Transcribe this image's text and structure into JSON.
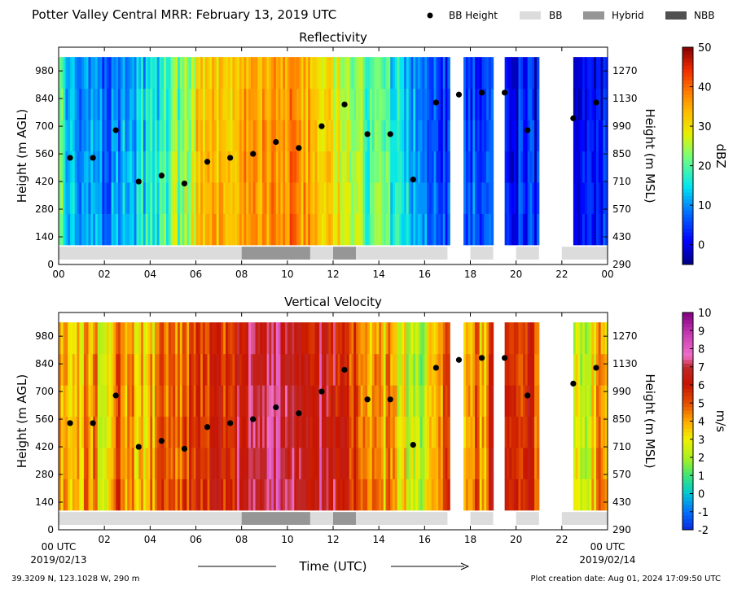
{
  "figure": {
    "title": "Potter Valley Central MRR:  February 13, 2019 UTC",
    "footer_left": "39.3209 N, 123.1028 W, 290 m",
    "footer_right": "Plot creation date: Aug 01, 2024 17:09:50 UTC",
    "xlabel": "Time (UTC)",
    "start_label": "00 UTC",
    "start_date": "2019/02/13",
    "end_label": "00 UTC",
    "end_date": "2019/02/14"
  },
  "legend": {
    "bb_height": "BB Height",
    "bb": "BB",
    "hybrid": "Hybrid",
    "nbb": "NBB"
  },
  "colors": {
    "bb": "#dcdcdc",
    "hybrid": "#969696",
    "nbb": "#505050",
    "marker": "#000000"
  },
  "chart_data": [
    {
      "type": "heatmap",
      "title": "Reflectivity",
      "ylabel": "Height (m AGL)",
      "y2label": "Height (m MSL)",
      "colorbar_label": "dBZ",
      "clim": [
        -5,
        50
      ],
      "colorbar_ticks": [
        "0",
        "10",
        "20",
        "30",
        "40",
        "50"
      ],
      "x_ticks": [
        "00",
        "02",
        "04",
        "06",
        "08",
        "10",
        "12",
        "14",
        "16",
        "18",
        "20",
        "22",
        "00"
      ],
      "y_ticks": [
        "0",
        "140",
        "280",
        "420",
        "560",
        "700",
        "840",
        "980"
      ],
      "y2_ticks": [
        "290",
        "430",
        "570",
        "710",
        "850",
        "990",
        "1130",
        "1270"
      ],
      "xlim_hours": [
        0,
        24
      ],
      "ylim_m": [
        0,
        1100
      ],
      "data_height_range_m": [
        100,
        1050
      ],
      "value_profile_hours": [
        0,
        0.5,
        1,
        1.5,
        2,
        2.5,
        3,
        3.5,
        4,
        4.5,
        5,
        5.5,
        6,
        6.5,
        7,
        7.5,
        8,
        8.5,
        9,
        9.5,
        10,
        10.5,
        11,
        11.5,
        12,
        12.5,
        13,
        13.5,
        14,
        14.5,
        15,
        15.5,
        16,
        16.5,
        17,
        17.5,
        18,
        18.5,
        19,
        19.5,
        20,
        20.5,
        21,
        21.5,
        22,
        22.5,
        23,
        23.5,
        24
      ],
      "value_profile": [
        22,
        14,
        10,
        12,
        8,
        10,
        16,
        14,
        18,
        18,
        22,
        24,
        32,
        34,
        35,
        35,
        36,
        37,
        38,
        38,
        38,
        37,
        36,
        34,
        30,
        26,
        24,
        22,
        20,
        18,
        14,
        12,
        10,
        8,
        6,
        5,
        8,
        4,
        6,
        3,
        2,
        6,
        3,
        null,
        null,
        2,
        4,
        2,
        3
      ],
      "no_data_hours": [
        [
          17.1,
          17.7
        ],
        [
          19.0,
          19.5
        ],
        [
          21.1,
          22.2
        ]
      ]
    },
    {
      "type": "heatmap",
      "title": "Vertical Velocity",
      "ylabel": "Height (m AGL)",
      "y2label": "Height (m MSL)",
      "colorbar_label": "m/s",
      "clim": [
        -2,
        10
      ],
      "colorbar_ticks": [
        "-2",
        "-1",
        "0",
        "1",
        "2",
        "3",
        "4",
        "5",
        "6",
        "7",
        "8",
        "9",
        "10"
      ],
      "x_ticks": [
        "",
        "02",
        "04",
        "06",
        "08",
        "10",
        "12",
        "14",
        "16",
        "18",
        "20",
        "22",
        ""
      ],
      "y_ticks": [
        "0",
        "140",
        "280",
        "420",
        "560",
        "700",
        "840",
        "980"
      ],
      "y2_ticks": [
        "290",
        "430",
        "570",
        "710",
        "850",
        "990",
        "1130",
        "1270"
      ],
      "xlim_hours": [
        0,
        24
      ],
      "ylim_m": [
        0,
        1100
      ],
      "data_height_range_m": [
        100,
        1050
      ],
      "value_profile_hours": [
        0,
        0.5,
        1,
        1.5,
        2,
        2.5,
        3,
        3.5,
        4,
        4.5,
        5,
        5.5,
        6,
        6.5,
        7,
        7.5,
        8,
        8.5,
        9,
        9.5,
        10,
        10.5,
        11,
        11.5,
        12,
        12.5,
        13,
        13.5,
        14,
        14.5,
        15,
        15.5,
        16,
        16.5,
        17,
        17.5,
        18,
        18.5,
        19,
        19.5,
        20,
        20.5,
        21,
        21.5,
        22,
        22.5,
        23,
        23.5,
        24
      ],
      "value_profile": [
        3.5,
        4,
        4,
        4.5,
        3,
        5,
        4,
        4,
        4,
        4.5,
        5,
        5,
        6,
        6,
        6,
        6,
        7,
        7.5,
        7.5,
        7.5,
        7.5,
        7.5,
        7,
        7,
        6.5,
        6,
        5.5,
        5,
        4,
        4,
        3,
        3,
        2.5,
        4,
        6,
        2,
        5,
        4,
        6,
        6,
        6,
        6,
        5.5,
        null,
        null,
        3,
        3,
        4,
        4
      ],
      "no_data_hours": [
        [
          17.1,
          17.7
        ],
        [
          19.0,
          19.5
        ],
        [
          21.1,
          22.2
        ]
      ]
    }
  ],
  "bb_height_points": {
    "hours": [
      0.5,
      1.5,
      2.5,
      3.5,
      4.5,
      5.5,
      6.5,
      7.5,
      8.5,
      9.5,
      10.5,
      11.5,
      12.5,
      13.5,
      14.5,
      15.5,
      16.5,
      17.5,
      18.5,
      19.5,
      20.5,
      22.5,
      23.5
    ],
    "heights_m": [
      540,
      540,
      680,
      420,
      450,
      410,
      520,
      540,
      560,
      620,
      590,
      700,
      810,
      660,
      660,
      430,
      820,
      860,
      870,
      870,
      680,
      740,
      820
    ]
  },
  "bb_type_segments": [
    {
      "start": 0,
      "end": 8,
      "type": "bb"
    },
    {
      "start": 8,
      "end": 11,
      "type": "hybrid"
    },
    {
      "start": 11,
      "end": 12,
      "type": "bb"
    },
    {
      "start": 12,
      "end": 13,
      "type": "hybrid"
    },
    {
      "start": 13,
      "end": 17,
      "type": "bb"
    },
    {
      "start": 18,
      "end": 19,
      "type": "bb"
    },
    {
      "start": 20,
      "end": 21,
      "type": "bb"
    },
    {
      "start": 22,
      "end": 24,
      "type": "bb"
    }
  ]
}
